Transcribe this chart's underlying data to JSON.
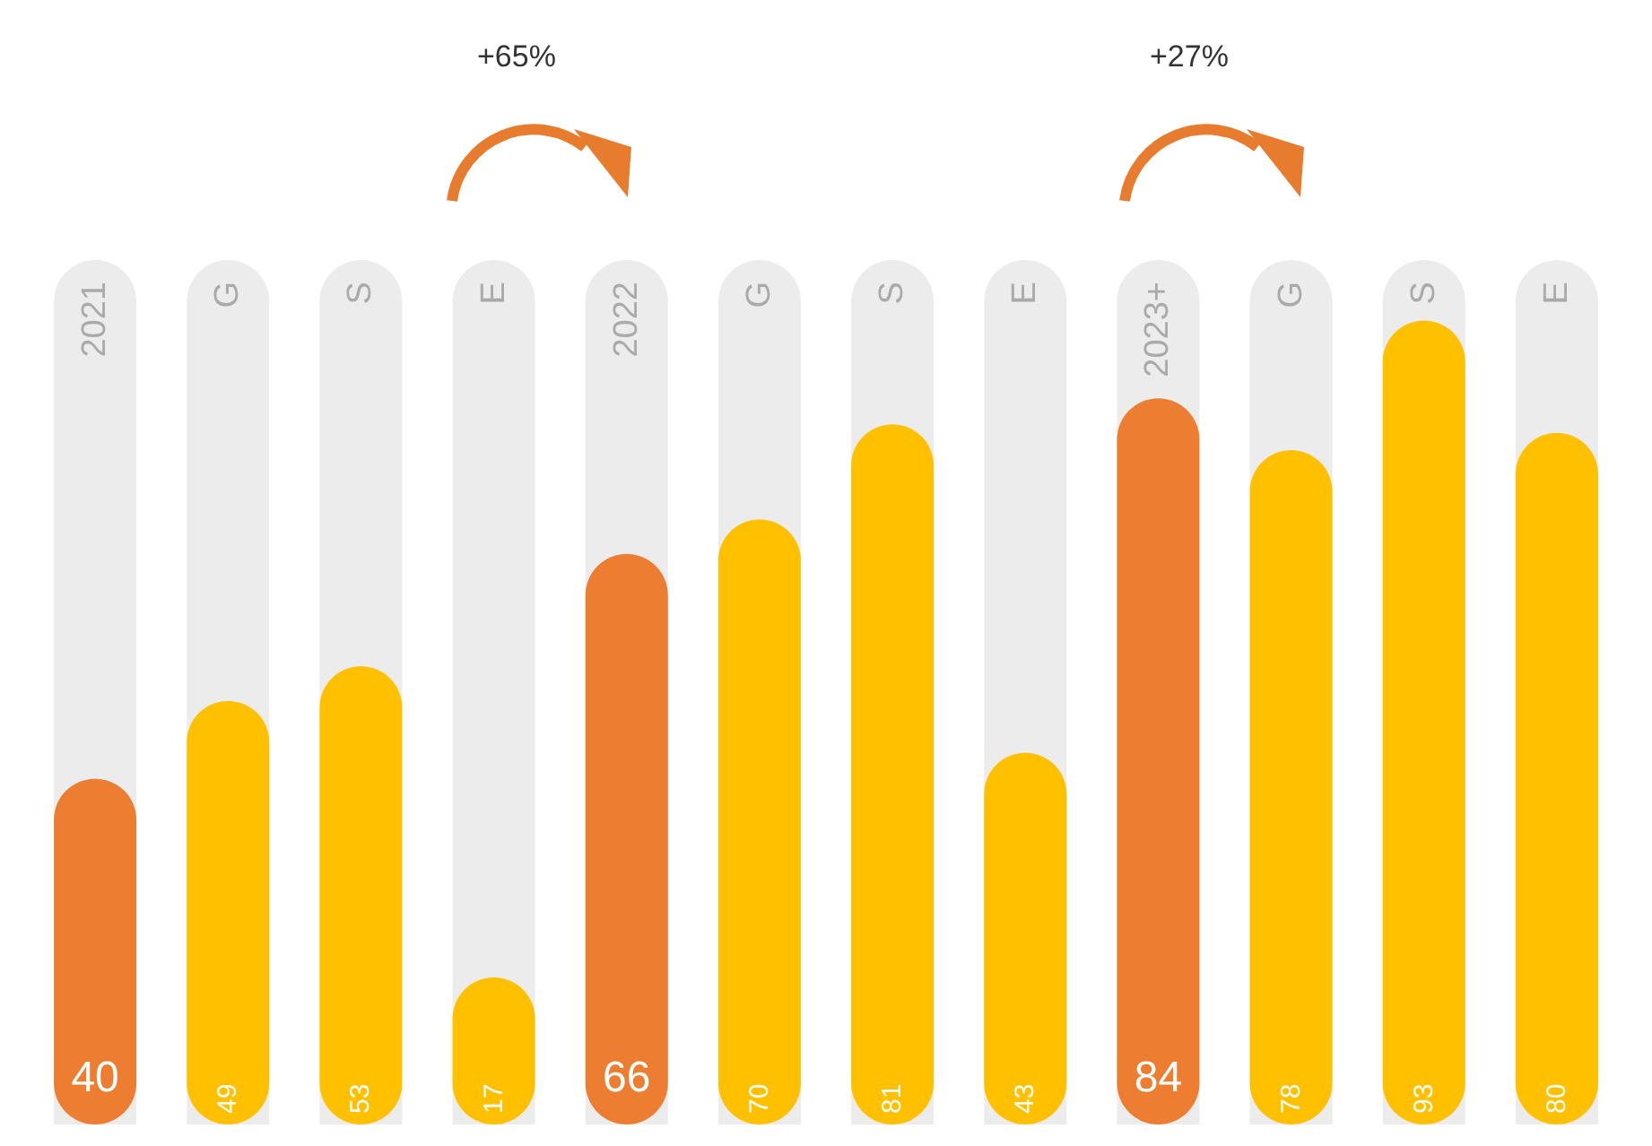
{
  "chart_data": {
    "type": "bar",
    "data_labels": true,
    "categories": [
      "2021",
      "G",
      "S",
      "E",
      "2022",
      "G",
      "S",
      "E",
      "2023+",
      "G",
      "S",
      "E"
    ],
    "values": [
      40,
      49,
      53,
      17,
      66,
      70,
      81,
      43,
      84,
      78,
      93,
      80
    ],
    "colors": [
      "#ed7d31",
      "#ffc000",
      "#ffc000",
      "#ffc000",
      "#ed7d31",
      "#ffc000",
      "#ffc000",
      "#ffc000",
      "#ed7d31",
      "#ffc000",
      "#ffc000",
      "#ffc000"
    ],
    "annotations": [
      "+65%",
      "+27%"
    ]
  }
}
